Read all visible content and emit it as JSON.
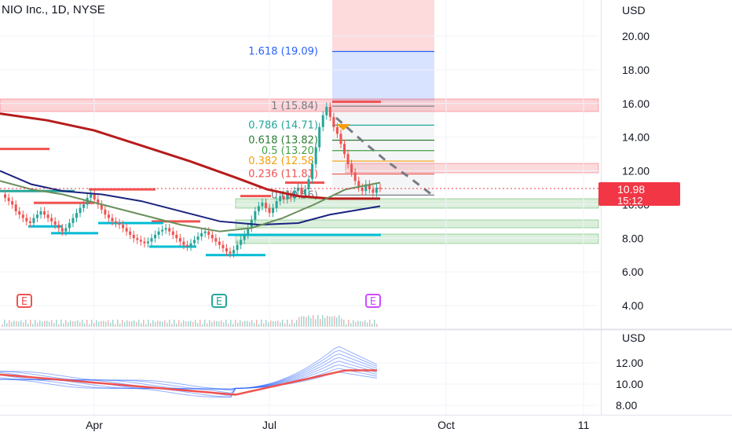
{
  "title": "NIO Inc., 1D, NYSE",
  "currency": "USD",
  "price_axis_ticks": [
    "20.00",
    "18.00",
    "16.00",
    "14.00",
    "12.00",
    "10.00",
    "8.00",
    "6.00",
    "4.00"
  ],
  "price_axis_values": [
    20,
    18,
    16,
    14,
    12,
    10,
    8,
    6,
    4
  ],
  "osc_axis_ticks": [
    "12.00",
    "10.00",
    "8.00"
  ],
  "osc_axis_values": [
    12,
    10,
    8
  ],
  "time_ticks": [
    "Apr",
    "Jul",
    "Oct",
    "11"
  ],
  "current_price": "10.98",
  "countdown": "15:12",
  "earnings_label": "E",
  "colors": {
    "up": "#26a69a",
    "down": "#ef5350",
    "ma_fast": "#6a8f5a",
    "ma_mid": "#1a237e",
    "ma_slow": "#b71c1c",
    "fib_blue": "#2962ff",
    "accent_red": "#f23645"
  },
  "chart_data": {
    "type": "candlestick",
    "title": "NIO Inc., 1D, NYSE",
    "ylim": [
      3,
      23
    ],
    "x_ticks": [
      "Apr",
      "Jul",
      "Oct",
      "11"
    ],
    "fib_levels": [
      {
        "label": "1.618 (19.09)",
        "ratio": 1.618,
        "price": 19.09,
        "color": "#2962ff"
      },
      {
        "label": "1 (15.84)",
        "ratio": 1,
        "price": 15.84,
        "color": "#787b86"
      },
      {
        "label": "0.786 (14.71)",
        "ratio": 0.786,
        "price": 14.71,
        "color": "#26a69a"
      },
      {
        "label": "0.618 (13.82)",
        "ratio": 0.618,
        "price": 13.82,
        "color": "#2e7d32"
      },
      {
        "label": "0.5 (13.20)",
        "ratio": 0.5,
        "price": 13.2,
        "color": "#43a047"
      },
      {
        "label": "0.382 (12.58)",
        "ratio": 0.382,
        "price": 12.58,
        "color": "#f59e0b"
      },
      {
        "label": "0.236 (11.81)",
        "ratio": 0.236,
        "price": 11.81,
        "color": "#ef5350"
      },
      {
        "label": "0 (10.56)",
        "ratio": 0,
        "price": 10.56,
        "color": "#787b86"
      }
    ],
    "last_price": 10.98,
    "oscillator_ylim": [
      7.3,
      13.5
    ]
  }
}
